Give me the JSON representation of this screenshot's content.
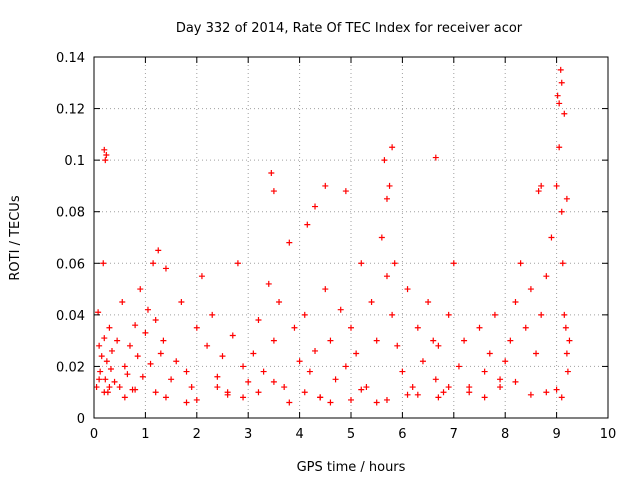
{
  "chart_data": {
    "type": "scatter",
    "title": "Day 332 of 2014, Rate Of TEC Index for receiver acor",
    "xlabel": "GPS time / hours",
    "ylabel": "ROTI / TECUs",
    "xlim": [
      0,
      10
    ],
    "ylim": [
      0,
      0.14
    ],
    "xticks": [
      0,
      1,
      2,
      3,
      4,
      5,
      6,
      7,
      8,
      9,
      10
    ],
    "yticks": [
      0,
      0.02,
      0.04,
      0.06,
      0.08,
      0.1,
      0.12,
      0.14
    ],
    "xtick_labels": [
      "0",
      "1",
      "2",
      "3",
      "4",
      "5",
      "6",
      "7",
      "8",
      "9",
      "10"
    ],
    "ytick_labels": [
      "0",
      "0.02",
      "0.04",
      "0.06",
      "0.08",
      "0.1",
      "0.12",
      "0.14"
    ],
    "grid": true,
    "marker": "+",
    "color": "#ff0000",
    "series": [
      {
        "name": "ROTI",
        "x": [
          0.05,
          0.08,
          0.1,
          0.12,
          0.15,
          0.18,
          0.2,
          0.22,
          0.25,
          0.27,
          0.3,
          0.33,
          0.35,
          0.4,
          0.45,
          0.5,
          0.55,
          0.6,
          0.65,
          0.7,
          0.75,
          0.8,
          0.85,
          0.9,
          0.95,
          1.0,
          1.05,
          1.1,
          1.15,
          1.2,
          1.25,
          1.3,
          1.35,
          1.4,
          1.5,
          1.6,
          1.7,
          1.8,
          1.9,
          2.0,
          2.1,
          2.2,
          2.3,
          2.4,
          2.5,
          2.6,
          2.7,
          2.8,
          2.9,
          3.0,
          3.1,
          3.2,
          3.3,
          3.4,
          3.5,
          3.6,
          3.7,
          3.8,
          3.9,
          4.0,
          4.1,
          4.2,
          4.3,
          4.4,
          4.5,
          4.6,
          4.7,
          4.8,
          4.9,
          5.0,
          5.1,
          5.2,
          5.3,
          5.4,
          5.5,
          5.6,
          5.7,
          5.75,
          5.8,
          5.85,
          5.9,
          6.0,
          6.1,
          6.2,
          6.3,
          6.4,
          6.5,
          6.6,
          6.65,
          6.7,
          6.8,
          6.9,
          7.0,
          7.1,
          7.2,
          7.3,
          7.5,
          7.6,
          7.7,
          7.8,
          7.9,
          8.0,
          8.1,
          8.2,
          8.3,
          8.4,
          8.5,
          8.6,
          8.7,
          8.8,
          8.9,
          9.0,
          9.02,
          9.05,
          9.08,
          9.1,
          9.12,
          9.15,
          9.18,
          9.2,
          9.22,
          9.25,
          0.1,
          0.3,
          0.6,
          1.2,
          1.8,
          2.4,
          2.9,
          3.5,
          4.1,
          4.6,
          5.2,
          5.7,
          6.3,
          6.9,
          7.6,
          8.2,
          8.8,
          9.1,
          0.2,
          0.8,
          1.4,
          2.0,
          2.6,
          3.2,
          3.8,
          4.4,
          5.0,
          5.5,
          6.1,
          6.7,
          7.3,
          7.9,
          8.5,
          9.0,
          3.45,
          3.5,
          4.15,
          4.3,
          4.5,
          4.9,
          5.65,
          5.7,
          5.8,
          6.65,
          8.65,
          8.7,
          9.05,
          9.1,
          9.15,
          9.2,
          0.2,
          0.22,
          0.24
        ],
        "y": [
          0.012,
          0.041,
          0.028,
          0.018,
          0.024,
          0.06,
          0.031,
          0.015,
          0.022,
          0.01,
          0.035,
          0.019,
          0.026,
          0.014,
          0.03,
          0.012,
          0.045,
          0.02,
          0.017,
          0.028,
          0.011,
          0.036,
          0.024,
          0.05,
          0.016,
          0.033,
          0.042,
          0.021,
          0.06,
          0.038,
          0.065,
          0.025,
          0.03,
          0.058,
          0.015,
          0.022,
          0.045,
          0.018,
          0.012,
          0.035,
          0.055,
          0.028,
          0.04,
          0.016,
          0.024,
          0.01,
          0.032,
          0.06,
          0.02,
          0.014,
          0.025,
          0.038,
          0.018,
          0.052,
          0.03,
          0.045,
          0.012,
          0.068,
          0.035,
          0.022,
          0.04,
          0.018,
          0.026,
          0.008,
          0.05,
          0.03,
          0.015,
          0.042,
          0.02,
          0.035,
          0.025,
          0.06,
          0.012,
          0.045,
          0.03,
          0.07,
          0.055,
          0.09,
          0.04,
          0.06,
          0.028,
          0.018,
          0.05,
          0.012,
          0.035,
          0.022,
          0.045,
          0.03,
          0.015,
          0.028,
          0.01,
          0.04,
          0.06,
          0.02,
          0.03,
          0.012,
          0.035,
          0.018,
          0.025,
          0.04,
          0.015,
          0.022,
          0.03,
          0.045,
          0.06,
          0.035,
          0.05,
          0.025,
          0.04,
          0.055,
          0.07,
          0.09,
          0.125,
          0.105,
          0.135,
          0.08,
          0.06,
          0.04,
          0.035,
          0.025,
          0.018,
          0.03,
          0.015,
          0.012,
          0.008,
          0.01,
          0.006,
          0.012,
          0.008,
          0.014,
          0.01,
          0.006,
          0.011,
          0.007,
          0.009,
          0.012,
          0.008,
          0.014,
          0.01,
          0.008,
          0.01,
          0.011,
          0.008,
          0.007,
          0.009,
          0.01,
          0.006,
          0.008,
          0.007,
          0.006,
          0.009,
          0.008,
          0.01,
          0.012,
          0.009,
          0.011,
          0.095,
          0.088,
          0.075,
          0.082,
          0.09,
          0.088,
          0.1,
          0.085,
          0.105,
          0.101,
          0.088,
          0.09,
          0.122,
          0.13,
          0.118,
          0.085,
          0.104,
          0.1,
          0.102
        ]
      }
    ]
  }
}
